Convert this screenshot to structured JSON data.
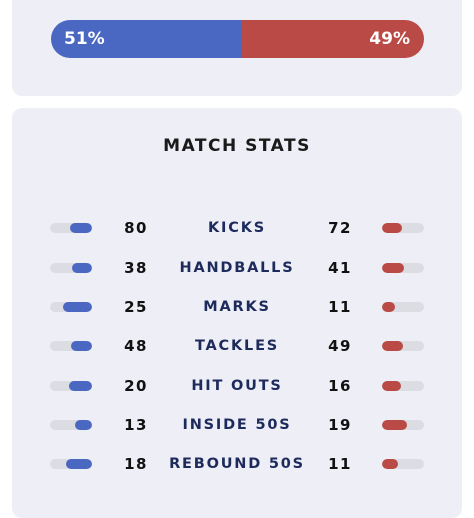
{
  "possession": {
    "home_label": "51%",
    "away_label": "49%",
    "home_fraction": 0.51,
    "away_fraction": 0.49
  },
  "match_stats": {
    "title": "MATCH STATS",
    "rows": [
      {
        "label": "KICKS",
        "home": "80",
        "away": "72"
      },
      {
        "label": "HANDBALLS",
        "home": "38",
        "away": "41"
      },
      {
        "label": "MARKS",
        "home": "25",
        "away": "11"
      },
      {
        "label": "TACKLES",
        "home": "48",
        "away": "49"
      },
      {
        "label": "HIT OUTS",
        "home": "20",
        "away": "16"
      },
      {
        "label": "INSIDE 50S",
        "home": "13",
        "away": "19"
      },
      {
        "label": "REBOUND 50S",
        "home": "18",
        "away": "11"
      }
    ]
  },
  "colors": {
    "home": "#4a67c1",
    "away": "#b94a45",
    "card_background": "#eeeef6",
    "label_text": "#1d2a5c"
  }
}
